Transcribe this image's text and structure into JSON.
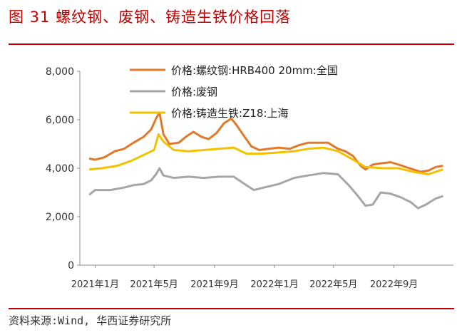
{
  "figure_title": "图 31  螺纹钢、废钢、铸造生铁价格回落",
  "source": "资料来源:Wind, 华西证券研究所",
  "colors": {
    "title": "#c00000",
    "rebar": "#e07a2a",
    "scrap": "#a6a6a6",
    "pigiron": "#f2c200"
  },
  "chart_data": {
    "type": "line",
    "title": "",
    "xlabel": "",
    "ylabel": "",
    "ylim": [
      0,
      8000
    ],
    "yticks": [
      "8,000",
      "6,000",
      "4,000",
      "2,000",
      "0"
    ],
    "xticks": [
      "2021年1月",
      "2021年5月",
      "2021年9月",
      "2022年1月",
      "2022年5月",
      "2022年9月"
    ],
    "x_range": [
      "2020-12",
      "2022-12"
    ],
    "grid": false,
    "legend_position": "top",
    "series": [
      {
        "name": "价格:螺纹钢:HRB400 20mm:全国",
        "color": "#e07a2a",
        "points": [
          [
            "2020-12-20",
            4400
          ],
          [
            "2021-01-01",
            4350
          ],
          [
            "2021-01-20",
            4450
          ],
          [
            "2021-02-10",
            4700
          ],
          [
            "2021-03-01",
            4800
          ],
          [
            "2021-03-20",
            5050
          ],
          [
            "2021-04-10",
            5300
          ],
          [
            "2021-04-25",
            5600
          ],
          [
            "2021-05-05",
            6050
          ],
          [
            "2021-05-12",
            6300
          ],
          [
            "2021-05-20",
            5400
          ],
          [
            "2021-06-01",
            5000
          ],
          [
            "2021-06-20",
            5050
          ],
          [
            "2021-07-05",
            5300
          ],
          [
            "2021-07-20",
            5500
          ],
          [
            "2021-08-05",
            5300
          ],
          [
            "2021-08-20",
            5200
          ],
          [
            "2021-09-05",
            5450
          ],
          [
            "2021-09-20",
            5850
          ],
          [
            "2021-10-05",
            6050
          ],
          [
            "2021-10-15",
            5800
          ],
          [
            "2021-11-01",
            5300
          ],
          [
            "2021-11-15",
            4900
          ],
          [
            "2021-12-01",
            4750
          ],
          [
            "2021-12-20",
            4800
          ],
          [
            "2022-01-10",
            4850
          ],
          [
            "2022-02-01",
            4800
          ],
          [
            "2022-02-20",
            4950
          ],
          [
            "2022-03-10",
            5050
          ],
          [
            "2022-04-01",
            5050
          ],
          [
            "2022-04-20",
            5050
          ],
          [
            "2022-05-10",
            4800
          ],
          [
            "2022-05-25",
            4700
          ],
          [
            "2022-06-10",
            4500
          ],
          [
            "2022-06-25",
            4100
          ],
          [
            "2022-07-05",
            3950
          ],
          [
            "2022-07-20",
            4150
          ],
          [
            "2022-08-05",
            4200
          ],
          [
            "2022-08-25",
            4250
          ],
          [
            "2022-09-10",
            4150
          ],
          [
            "2022-09-25",
            4050
          ],
          [
            "2022-10-10",
            3950
          ],
          [
            "2022-10-25",
            3850
          ],
          [
            "2022-11-10",
            3900
          ],
          [
            "2022-11-25",
            4050
          ],
          [
            "2022-12-10",
            4100
          ]
        ]
      },
      {
        "name": "价格:废钢",
        "color": "#a6a6a6",
        "points": [
          [
            "2020-12-20",
            2900
          ],
          [
            "2021-01-01",
            3100
          ],
          [
            "2021-02-01",
            3100
          ],
          [
            "2021-03-01",
            3200
          ],
          [
            "2021-03-20",
            3300
          ],
          [
            "2021-04-10",
            3350
          ],
          [
            "2021-04-25",
            3500
          ],
          [
            "2021-05-05",
            3750
          ],
          [
            "2021-05-12",
            4000
          ],
          [
            "2021-05-20",
            3700
          ],
          [
            "2021-06-10",
            3600
          ],
          [
            "2021-07-10",
            3650
          ],
          [
            "2021-08-10",
            3600
          ],
          [
            "2021-09-10",
            3650
          ],
          [
            "2021-10-10",
            3650
          ],
          [
            "2021-11-01",
            3350
          ],
          [
            "2021-11-20",
            3100
          ],
          [
            "2021-12-10",
            3200
          ],
          [
            "2022-01-10",
            3350
          ],
          [
            "2022-02-10",
            3600
          ],
          [
            "2022-03-10",
            3700
          ],
          [
            "2022-04-10",
            3800
          ],
          [
            "2022-05-10",
            3750
          ],
          [
            "2022-06-01",
            3300
          ],
          [
            "2022-06-20",
            2850
          ],
          [
            "2022-07-05",
            2450
          ],
          [
            "2022-07-20",
            2500
          ],
          [
            "2022-08-05",
            3000
          ],
          [
            "2022-08-25",
            2950
          ],
          [
            "2022-09-15",
            2800
          ],
          [
            "2022-10-05",
            2600
          ],
          [
            "2022-10-20",
            2350
          ],
          [
            "2022-11-05",
            2500
          ],
          [
            "2022-11-25",
            2750
          ],
          [
            "2022-12-10",
            2850
          ]
        ]
      },
      {
        "name": "价格:铸造生铁:Z18:上海",
        "color": "#f2c200",
        "points": [
          [
            "2020-12-20",
            3950
          ],
          [
            "2021-01-15",
            4000
          ],
          [
            "2021-02-15",
            4100
          ],
          [
            "2021-03-15",
            4300
          ],
          [
            "2021-04-10",
            4550
          ],
          [
            "2021-05-01",
            4750
          ],
          [
            "2021-05-10",
            5400
          ],
          [
            "2021-05-20",
            5100
          ],
          [
            "2021-06-10",
            4750
          ],
          [
            "2021-07-10",
            4700
          ],
          [
            "2021-08-10",
            4750
          ],
          [
            "2021-09-10",
            4800
          ],
          [
            "2021-10-10",
            4850
          ],
          [
            "2021-11-05",
            4600
          ],
          [
            "2021-12-05",
            4600
          ],
          [
            "2022-01-10",
            4650
          ],
          [
            "2022-02-10",
            4700
          ],
          [
            "2022-03-10",
            4800
          ],
          [
            "2022-04-10",
            4850
          ],
          [
            "2022-05-10",
            4700
          ],
          [
            "2022-06-10",
            4350
          ],
          [
            "2022-07-05",
            4050
          ],
          [
            "2022-08-10",
            4000
          ],
          [
            "2022-09-10",
            4000
          ],
          [
            "2022-10-10",
            3850
          ],
          [
            "2022-11-10",
            3750
          ],
          [
            "2022-12-10",
            3950
          ]
        ]
      }
    ]
  }
}
